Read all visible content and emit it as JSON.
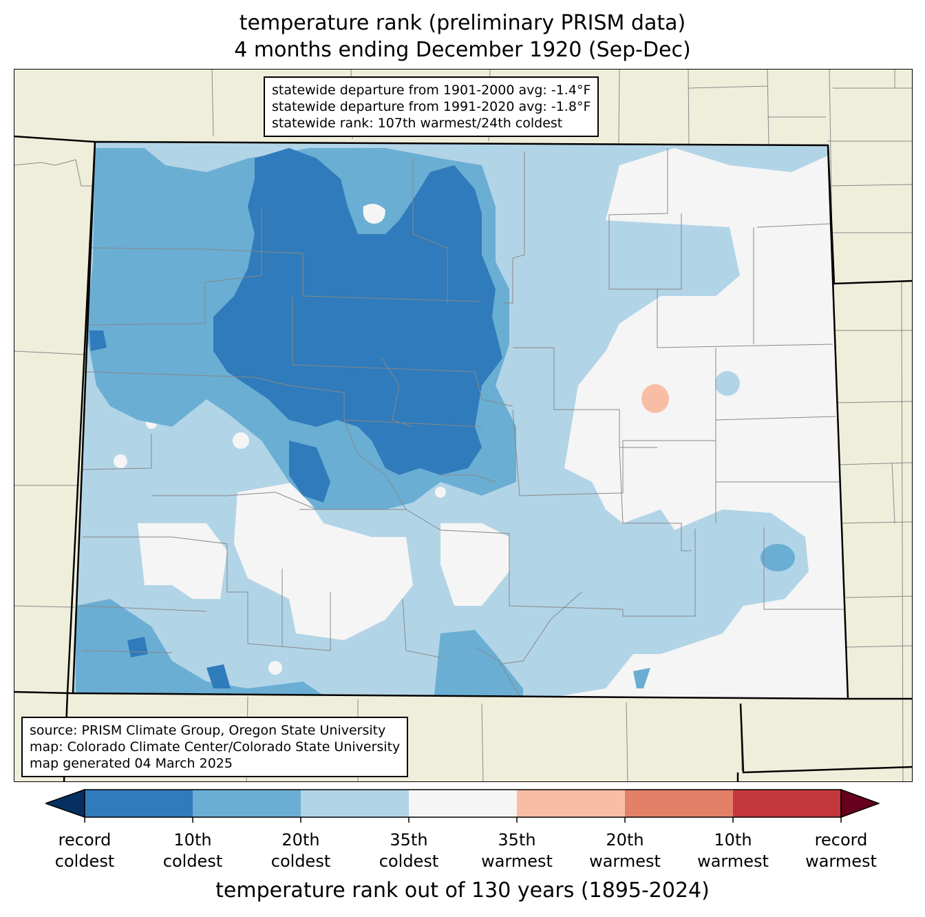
{
  "title": {
    "line1": "temperature rank (preliminary PRISM data)",
    "line2": "4 months ending December 1920 (Sep-Dec)"
  },
  "stats_box": {
    "line1": "statewide departure from 1901-2000 avg: -1.4°F",
    "line2": "statewide departure from 1991-2020 avg: -1.8°F",
    "line3": "statewide rank: 107th warmest/24th coldest"
  },
  "credits_box": {
    "line1": "source: PRISM Climate Group, Oregon State University",
    "line2": "map: Colorado Climate Center/Colorado State University",
    "line3": "map generated 04 March 2025"
  },
  "colorbar": {
    "label": "temperature rank out of 130 years (1895-2024)",
    "classes": [
      {
        "color": "#053061"
      },
      {
        "color": "#2f7bbb"
      },
      {
        "color": "#6aaed3"
      },
      {
        "color": "#b2d4e7"
      },
      {
        "color": "#f5f5f5"
      },
      {
        "color": "#f8bea5"
      },
      {
        "color": "#e28068"
      },
      {
        "color": "#c4373c"
      },
      {
        "color": "#67001f"
      }
    ],
    "ticks": [
      {
        "line1": "record",
        "line2": "coldest"
      },
      {
        "line1": "10th",
        "line2": "coldest"
      },
      {
        "line1": "20th",
        "line2": "coldest"
      },
      {
        "line1": "35th",
        "line2": "coldest"
      },
      {
        "line1": "35th",
        "line2": "warmest"
      },
      {
        "line1": "20th",
        "line2": "warmest"
      },
      {
        "line1": "10th",
        "line2": "warmest"
      },
      {
        "line1": "record",
        "line2": "warmest"
      }
    ]
  },
  "map_colors": {
    "background_land": "#efeedb",
    "county_lines": "#888888",
    "state_border": "#000000"
  }
}
